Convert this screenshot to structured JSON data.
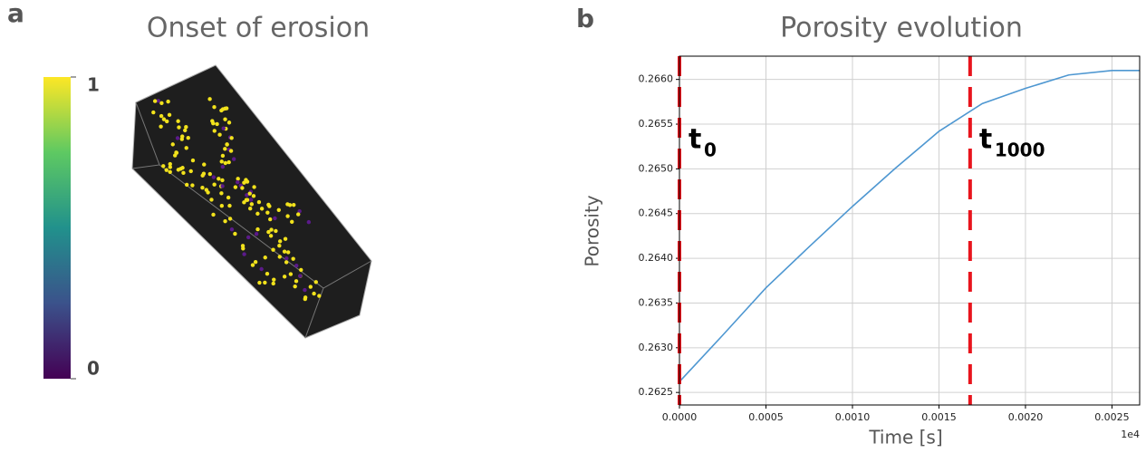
{
  "chart_data": [
    {
      "type": "colorbar",
      "panel_label": "a",
      "title": "Onset of erosion",
      "colormap": "viridis",
      "clim": [
        0,
        1
      ],
      "cticks": [
        0,
        1
      ]
    },
    {
      "type": "line",
      "panel_label": "b",
      "title": "Porosity evolution",
      "x_label": "Time [s]",
      "y_label": "Porosity",
      "x_offset_label": "1e4",
      "x": [
        0,
        0.00025,
        0.0005,
        0.00075,
        0.001,
        0.00125,
        0.0015,
        0.00175,
        0.002,
        0.00225,
        0.0025,
        0.00266
      ],
      "series": [
        {
          "color": "#4e97d1",
          "values": [
            0.26262,
            0.26314,
            0.26367,
            0.26413,
            0.26458,
            0.26501,
            0.26542,
            0.26573,
            0.2659,
            0.26605,
            0.2661,
            0.2661
          ]
        }
      ],
      "xlim": [
        0,
        0.00266
      ],
      "xticks": [
        {
          "value": 0,
          "label": "0.0000"
        },
        0.0005,
        {
          "value": 0.001,
          "label": "0.0010"
        },
        0.0015,
        {
          "value": 0.002,
          "label": "0.0020"
        },
        0.0025
      ],
      "ylim": [
        0.26236,
        0.26626
      ],
      "yticks": [
        0.2625,
        {
          "value": 0.263,
          "label": "0.2630"
        },
        0.2635,
        {
          "value": 0.264,
          "label": "0.2640"
        },
        0.2645,
        {
          "value": 0.265,
          "label": "0.2650"
        },
        0.2655,
        {
          "value": 0.266,
          "label": "0.2660"
        }
      ],
      "grid": true,
      "annotation_color": "#e8141c",
      "annotations": [
        {
          "text": "t",
          "sub": "0",
          "x": 0
        },
        {
          "text": "t",
          "sub": "1000",
          "x": 0.00168
        }
      ]
    }
  ]
}
